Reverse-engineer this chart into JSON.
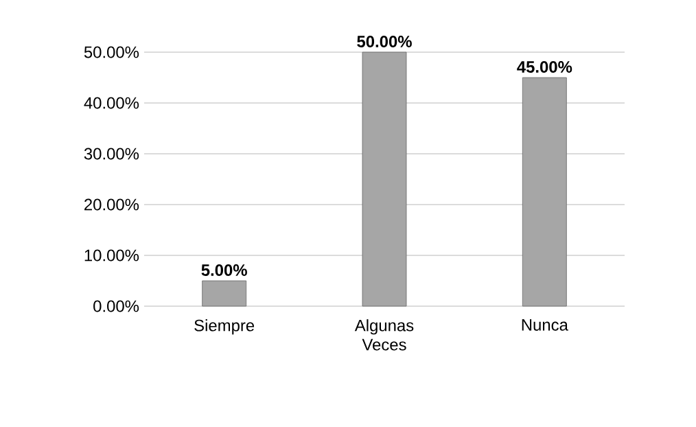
{
  "chart_data": {
    "type": "bar",
    "categories": [
      "Siempre",
      "Algunas Veces",
      "Nunca"
    ],
    "values": [
      5,
      50,
      45
    ],
    "color": "#a6a6a6",
    "value_labels": [
      "5.00%",
      "50.00%",
      "45.00%"
    ],
    "ylim": [
      0,
      50
    ],
    "yticks": [
      {
        "value": 0,
        "label": "0.00%"
      },
      {
        "value": 10,
        "label": "10.00%"
      },
      {
        "value": 20,
        "label": "20.00%"
      },
      {
        "value": 30,
        "label": "30.00%"
      },
      {
        "value": 40,
        "label": "40.00%"
      },
      {
        "value": 50,
        "label": "50.00%"
      }
    ],
    "grid": "y"
  }
}
